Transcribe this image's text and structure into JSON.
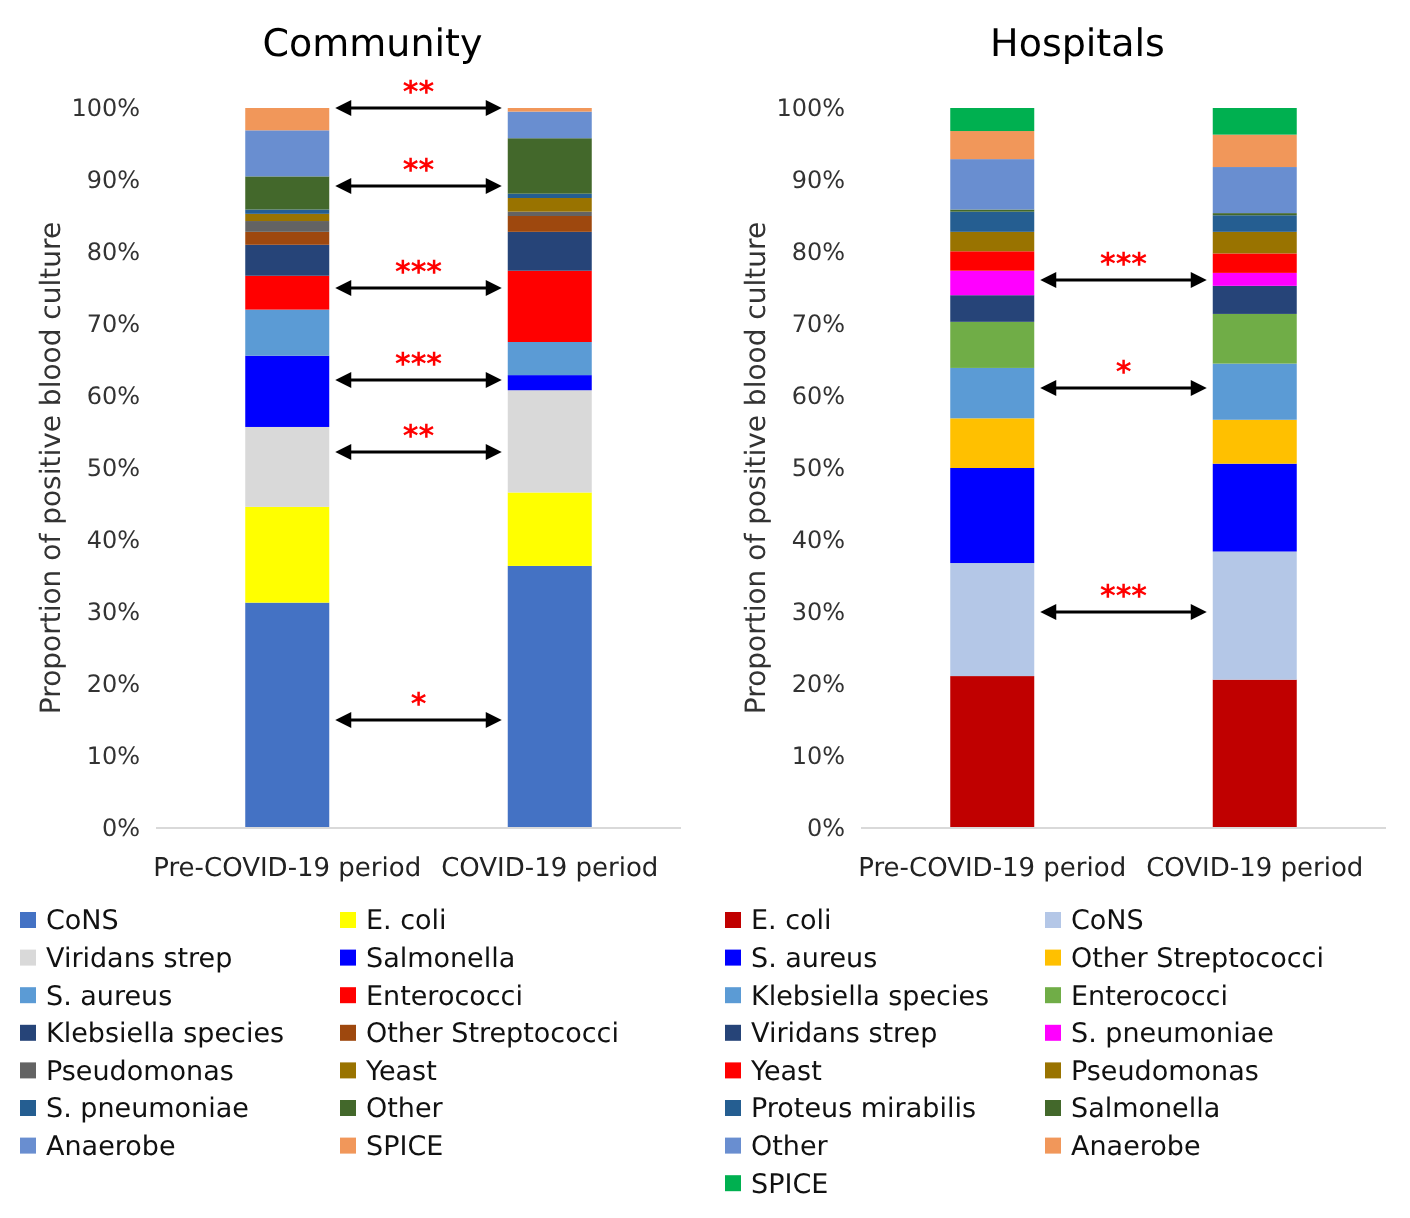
{
  "chart_data": [
    {
      "type": "bar",
      "title": "Community",
      "ylabel": "Proportion of positive blood culture",
      "categories": [
        "Pre-COVID-19 period",
        "COVID-19 period"
      ],
      "stacked": true,
      "ylim": [
        0,
        100
      ],
      "yticks": [
        {
          "value": 0,
          "label": "0%"
        },
        {
          "value": 10,
          "label": "10%"
        },
        {
          "value": 20,
          "label": "20%"
        },
        {
          "value": 30,
          "label": "30%"
        },
        {
          "value": 40,
          "label": "40%"
        },
        {
          "value": 50,
          "label": "50%"
        },
        {
          "value": 60,
          "label": "60%"
        },
        {
          "value": 70,
          "label": "70%"
        },
        {
          "value": 80,
          "label": "80%"
        },
        {
          "value": 90,
          "label": "90%"
        },
        {
          "value": 100,
          "label": "100%"
        }
      ],
      "legend": "bottom",
      "grid": false,
      "series": [
        {
          "name": "CoNS",
          "color": "#4472c4",
          "values": [
            31.3,
            36.4
          ]
        },
        {
          "name": "E. coli",
          "color": "#ffff00",
          "values": [
            13.3,
            10.2
          ]
        },
        {
          "name": "Viridans strep",
          "color": "#d9d9d9",
          "values": [
            11.1,
            14.2
          ]
        },
        {
          "name": "Salmonella",
          "color": "#0000ff",
          "values": [
            9.9,
            2.1
          ]
        },
        {
          "name": "S. aureus",
          "color": "#5b9bd5",
          "values": [
            6.4,
            4.6
          ]
        },
        {
          "name": "Enterococci",
          "color": "#ff0000",
          "values": [
            4.7,
            9.9
          ]
        },
        {
          "name": "Klebsiella species",
          "color": "#264478",
          "values": [
            4.3,
            5.4
          ]
        },
        {
          "name": "Other Streptococci",
          "color": "#9e480e",
          "values": [
            1.8,
            2.2
          ]
        },
        {
          "name": "Pseudomonas",
          "color": "#636363",
          "values": [
            1.5,
            0.6
          ]
        },
        {
          "name": "Yeast",
          "color": "#997300",
          "values": [
            1.0,
            1.9
          ]
        },
        {
          "name": "S. pneumoniae",
          "color": "#255e91",
          "values": [
            0.6,
            0.6
          ]
        },
        {
          "name": "Other",
          "color": "#43682b",
          "values": [
            4.6,
            7.7
          ]
        },
        {
          "name": "Anaerobe",
          "color": "#698ed0",
          "values": [
            6.4,
            3.7
          ]
        },
        {
          "name": "SPICE",
          "color": "#f1975a",
          "values": [
            3.1,
            0.5
          ]
        }
      ],
      "annotations": [
        "**",
        "**",
        "***",
        "***",
        "**",
        "*"
      ]
    },
    {
      "type": "bar",
      "title": "Hospitals",
      "ylabel": "Proportion of positive blood culture",
      "categories": [
        "Pre-COVID-19 period",
        "COVID-19 period"
      ],
      "stacked": true,
      "ylim": [
        0,
        100
      ],
      "yticks": [
        {
          "value": 0,
          "label": "0%"
        },
        {
          "value": 10,
          "label": "10%"
        },
        {
          "value": 20,
          "label": "20%"
        },
        {
          "value": 30,
          "label": "30%"
        },
        {
          "value": 40,
          "label": "40%"
        },
        {
          "value": 50,
          "label": "50%"
        },
        {
          "value": 60,
          "label": "60%"
        },
        {
          "value": 70,
          "label": "70%"
        },
        {
          "value": 80,
          "label": "80%"
        },
        {
          "value": 90,
          "label": "90%"
        },
        {
          "value": 100,
          "label": "100%"
        }
      ],
      "legend": "bottom",
      "grid": false,
      "series": [
        {
          "name": "E. coli",
          "color": "#c00000",
          "values": [
            21.1,
            20.6
          ]
        },
        {
          "name": "CoNS",
          "color": "#b4c7e7",
          "values": [
            15.7,
            17.8
          ]
        },
        {
          "name": "S. aureus",
          "color": "#0000ff",
          "values": [
            13.2,
            12.2
          ]
        },
        {
          "name": "Other Streptococci",
          "color": "#ffc000",
          "values": [
            6.9,
            6.1
          ]
        },
        {
          "name": "Klebsiella species",
          "color": "#5b9bd5",
          "values": [
            7.0,
            7.8
          ]
        },
        {
          "name": "Enterococci",
          "color": "#70ad47",
          "values": [
            6.4,
            6.9
          ]
        },
        {
          "name": "Viridans strep",
          "color": "#264478",
          "values": [
            3.7,
            3.9
          ]
        },
        {
          "name": "S. pneumoniae",
          "color": "#ff00ff",
          "values": [
            3.4,
            1.8
          ]
        },
        {
          "name": "Yeast",
          "color": "#ff0000",
          "values": [
            2.7,
            2.7
          ]
        },
        {
          "name": "Pseudomonas",
          "color": "#997300",
          "values": [
            2.7,
            3.0
          ]
        },
        {
          "name": "Proteus mirabilis",
          "color": "#255e91",
          "values": [
            2.8,
            2.3
          ]
        },
        {
          "name": "Salmonella",
          "color": "#43682b",
          "values": [
            0.3,
            0.3
          ]
        },
        {
          "name": "Other",
          "color": "#698ed0",
          "values": [
            7.0,
            6.4
          ]
        },
        {
          "name": "Anaerobe",
          "color": "#f1975a",
          "values": [
            3.9,
            4.5
          ]
        },
        {
          "name": "SPICE",
          "color": "#00b050",
          "values": [
            3.2,
            3.7
          ]
        }
      ],
      "annotations": [
        "***",
        "*",
        "***"
      ]
    }
  ]
}
